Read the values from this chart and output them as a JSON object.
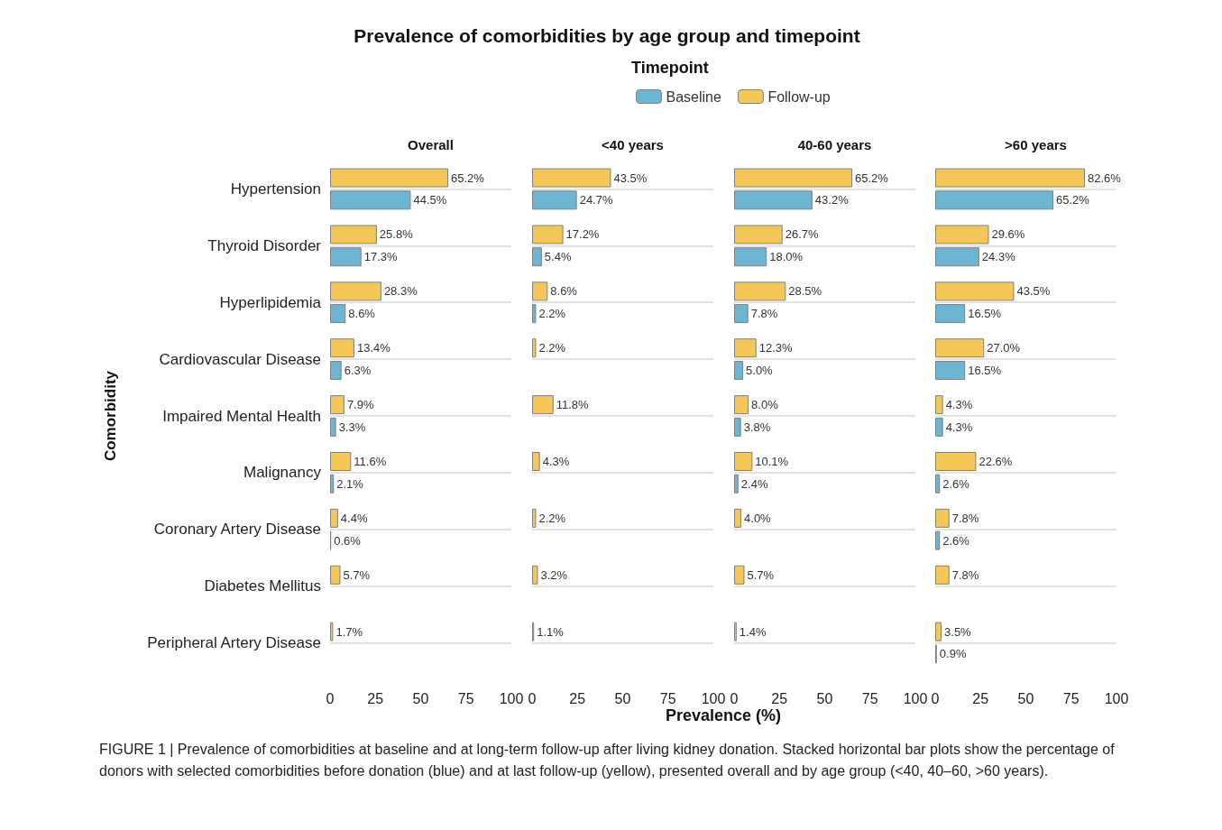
{
  "chart_data": [
    {
      "type": "bar",
      "orientation": "horizontal",
      "title": "Prevalence of comorbidities by age group and timepoint",
      "subtitle": "Overall",
      "legend_title": "Timepoint",
      "legend": "top",
      "ylabel": "Comorbidity",
      "grid": "y",
      "categories": [
        "Hypertension",
        "Thyroid Disorder",
        "Hyperlipidemia",
        "Cardiovascular Disease",
        "Impaired Mental Health",
        "Malignancy",
        "Coronary Artery Disease",
        "Diabetes Mellitus",
        "Peripheral Artery Disease"
      ],
      "xlim": [
        0,
        100
      ],
      "xticks": [
        0,
        25,
        50,
        75,
        100
      ],
      "series": [
        {
          "name": "Baseline",
          "color": "#6cb5d3",
          "values": [
            44.5,
            17.3,
            8.6,
            6.3,
            3.3,
            2.1,
            0.6,
            0,
            0
          ],
          "value_labels": [
            "44.5%",
            "17.3%",
            "8.6%",
            "6.3%",
            "3.3%",
            "2.1%",
            "0.6%",
            null,
            null
          ]
        },
        {
          "name": "Follow-up",
          "color": "#f5c757",
          "values": [
            65.2,
            25.8,
            28.3,
            13.4,
            7.9,
            11.6,
            4.4,
            5.7,
            1.7
          ],
          "value_labels": [
            "65.2%",
            "25.8%",
            "28.3%",
            "13.4%",
            "7.9%",
            "11.6%",
            "4.4%",
            "5.7%",
            "1.7%"
          ]
        }
      ],
      "annotations": [
        "FIGURE 1 | Prevalence of comorbidities at baseline and at long-term follow-up after living kidney donation. Stacked horizontal bar plots show the percentage of donors with selected comorbidities before donation (blue) and at last follow-up (yellow), presented overall and by age group (<40, 40–60, >60 years)."
      ]
    },
    {
      "type": "bar",
      "orientation": "horizontal",
      "title": "<40 years",
      "xlabel": "Prevalence (%)",
      "grid": "y",
      "tick_labels": "x",
      "categories": [
        null,
        null,
        null,
        null,
        null,
        null,
        null,
        null,
        null
      ],
      "xlim": [
        0,
        100
      ],
      "xticks": [
        0,
        25,
        50,
        75,
        100
      ],
      "series": [
        {
          "color": "#6cb5d3",
          "values": [
            24.7,
            5.4,
            2.2,
            0,
            0,
            0,
            0,
            0,
            0
          ],
          "value_labels": [
            "24.7%",
            "5.4%",
            "2.2%",
            null,
            null,
            null,
            null,
            null,
            null
          ]
        },
        {
          "color": "#f5c757",
          "values": [
            43.5,
            17.2,
            8.6,
            2.2,
            11.8,
            4.3,
            2.2,
            3.2,
            1.1
          ],
          "value_labels": [
            "43.5%",
            "17.2%",
            "8.6%",
            "2.2%",
            "11.8%",
            "4.3%",
            "2.2%",
            "3.2%",
            "1.1%"
          ]
        }
      ]
    },
    {
      "type": "bar",
      "orientation": "horizontal",
      "title": "40-60 years",
      "grid": "y",
      "tick_labels": "x",
      "categories": [
        null,
        null,
        null,
        null,
        null,
        null,
        null,
        null,
        null
      ],
      "xlim": [
        0,
        100
      ],
      "xticks": [
        0,
        25,
        50,
        75,
        100
      ],
      "series": [
        {
          "color": "#6cb5d3",
          "values": [
            43.2,
            18.0,
            7.8,
            5.0,
            3.8,
            2.4,
            0,
            0,
            0
          ],
          "value_labels": [
            "43.2%",
            "18.0%",
            "7.8%",
            "5.0%",
            "3.8%",
            "2.4%",
            null,
            null,
            null
          ]
        },
        {
          "color": "#f5c757",
          "values": [
            65.2,
            26.7,
            28.5,
            12.3,
            8.0,
            10.1,
            4.0,
            5.7,
            1.4
          ],
          "value_labels": [
            "65.2%",
            "26.7%",
            "28.5%",
            "12.3%",
            "8.0%",
            "10.1%",
            "4.0%",
            "5.7%",
            "1.4%"
          ]
        }
      ]
    },
    {
      "type": "bar",
      "orientation": "horizontal",
      "title": ">60 years",
      "grid": "y",
      "tick_labels": "x",
      "categories": [
        null,
        null,
        null,
        null,
        null,
        null,
        null,
        null,
        null
      ],
      "xlim": [
        0,
        100
      ],
      "xticks": [
        0,
        25,
        50,
        75,
        100
      ],
      "series": [
        {
          "color": "#6cb5d3",
          "values": [
            65.2,
            24.3,
            16.5,
            16.5,
            4.3,
            2.6,
            2.6,
            0,
            0.9
          ],
          "value_labels": [
            "65.2%",
            "24.3%",
            "16.5%",
            "16.5%",
            "4.3%",
            "2.6%",
            "2.6%",
            null,
            "0.9%"
          ]
        },
        {
          "color": "#f5c757",
          "values": [
            82.6,
            29.6,
            43.5,
            27.0,
            4.3,
            22.6,
            7.8,
            7.8,
            3.5
          ],
          "value_labels": [
            "82.6%",
            "29.6%",
            "43.5%",
            "27.0%",
            "4.3%",
            "22.6%",
            "7.8%",
            "7.8%",
            "3.5%"
          ]
        }
      ]
    }
  ]
}
